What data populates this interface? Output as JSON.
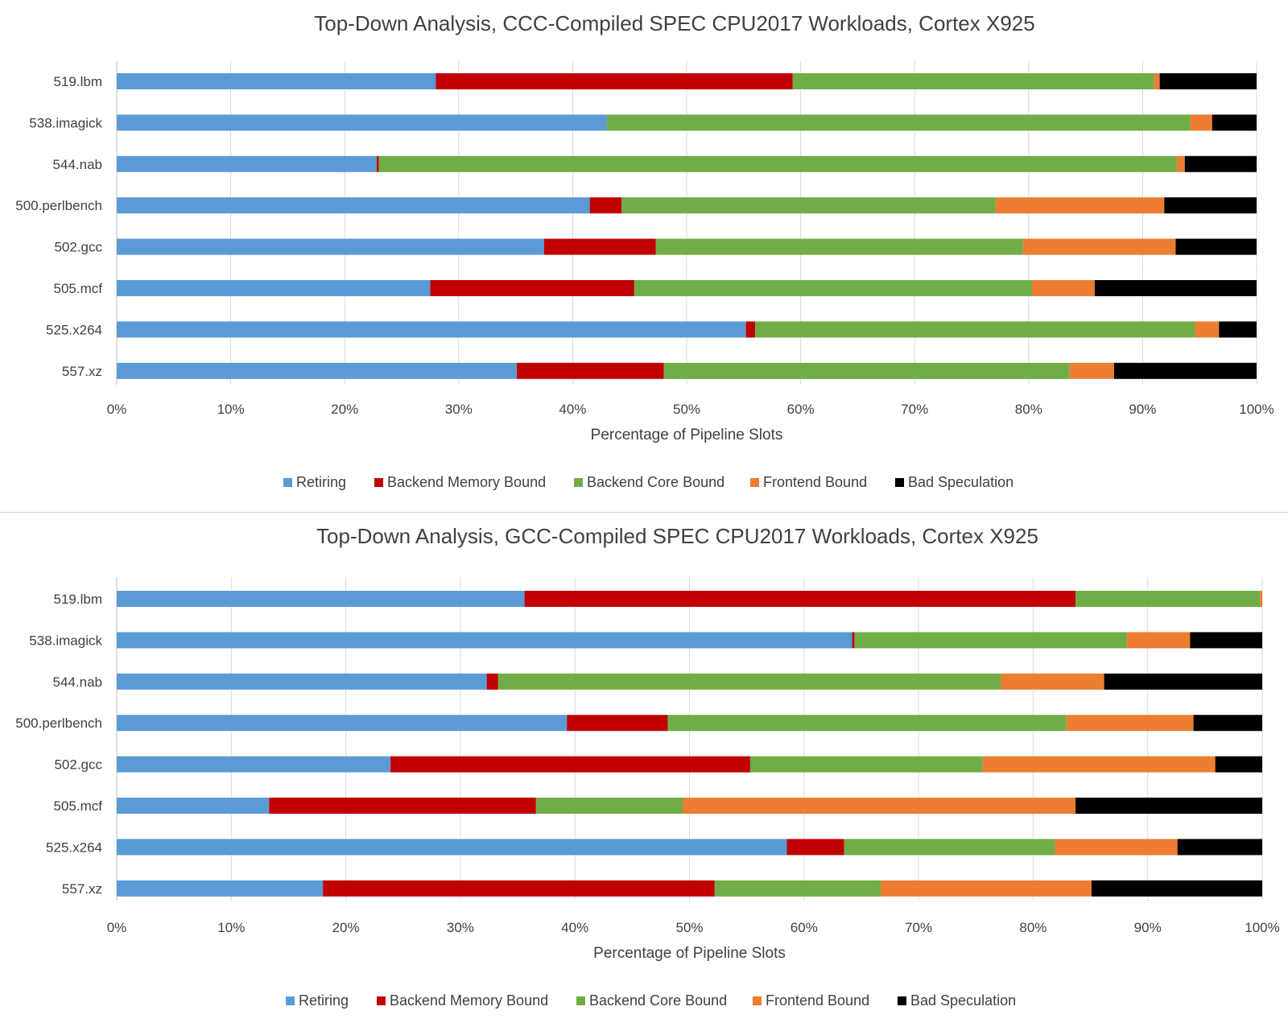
{
  "chart_data": [
    {
      "type": "bar",
      "orientation": "horizontal-stacked-100",
      "title": "Top-Down Analysis, CCC-Compiled SPEC CPU2017 Workloads, Cortex X925",
      "xlabel": "Percentage of Pipeline Slots",
      "ylabel": "",
      "xlim": [
        0,
        100
      ],
      "x_ticks": [
        "0%",
        "10%",
        "20%",
        "30%",
        "40%",
        "50%",
        "60%",
        "70%",
        "80%",
        "90%",
        "100%"
      ],
      "grid": "vertical",
      "legend_position": "bottom",
      "categories": [
        "519.lbm",
        "538.imagick",
        "544.nab",
        "500.perlbench",
        "502.gcc",
        "505.mcf",
        "525.x264",
        "557.xz"
      ],
      "series": [
        {
          "name": "Retiring",
          "color": "#5B9BD5",
          "values": [
            28.0,
            43.0,
            22.8,
            41.5,
            37.5,
            27.5,
            55.2,
            35.1
          ]
        },
        {
          "name": "Backend Memory Bound",
          "color": "#C00000",
          "values": [
            31.3,
            0.0,
            0.2,
            2.8,
            9.8,
            17.9,
            0.8,
            12.9
          ]
        },
        {
          "name": "Backend Core Bound",
          "color": "#70AD47",
          "values": [
            31.7,
            51.2,
            70.0,
            32.8,
            32.2,
            34.9,
            38.6,
            35.6
          ]
        },
        {
          "name": "Frontend Bound",
          "color": "#ED7D31",
          "values": [
            0.5,
            1.9,
            0.7,
            14.8,
            13.4,
            5.5,
            2.1,
            3.9
          ]
        },
        {
          "name": "Bad Speculation",
          "color": "#000000",
          "values": [
            8.5,
            3.9,
            6.3,
            8.1,
            7.1,
            14.2,
            3.3,
            12.5
          ]
        }
      ]
    },
    {
      "type": "bar",
      "orientation": "horizontal-stacked-100",
      "title": "Top-Down Analysis, GCC-Compiled SPEC CPU2017 Workloads, Cortex X925",
      "xlabel": "Percentage of Pipeline Slots",
      "ylabel": "",
      "xlim": [
        0,
        100
      ],
      "x_ticks": [
        "0%",
        "10%",
        "20%",
        "30%",
        "40%",
        "50%",
        "60%",
        "70%",
        "80%",
        "90%",
        "100%"
      ],
      "grid": "vertical",
      "legend_position": "bottom",
      "categories": [
        "519.lbm",
        "538.imagick",
        "544.nab",
        "500.perlbench",
        "502.gcc",
        "505.mcf",
        "525.x264",
        "557.xz"
      ],
      "series": [
        {
          "name": "Retiring",
          "color": "#5B9BD5",
          "values": [
            35.6,
            64.2,
            32.3,
            39.3,
            23.9,
            13.3,
            58.5,
            18.0
          ]
        },
        {
          "name": "Backend Memory Bound",
          "color": "#C00000",
          "values": [
            48.1,
            0.2,
            1.0,
            8.8,
            31.4,
            23.3,
            5.0,
            34.2
          ]
        },
        {
          "name": "Backend Core Bound",
          "color": "#70AD47",
          "values": [
            16.1,
            23.8,
            43.9,
            34.8,
            20.3,
            12.8,
            18.4,
            14.5
          ]
        },
        {
          "name": "Frontend Bound",
          "color": "#ED7D31",
          "values": [
            0.2,
            5.5,
            9.0,
            11.1,
            20.3,
            34.3,
            10.7,
            18.4
          ]
        },
        {
          "name": "Bad Speculation",
          "color": "#000000",
          "values": [
            0.0,
            6.3,
            13.8,
            6.0,
            4.1,
            16.3,
            7.4,
            14.9
          ]
        }
      ]
    }
  ]
}
